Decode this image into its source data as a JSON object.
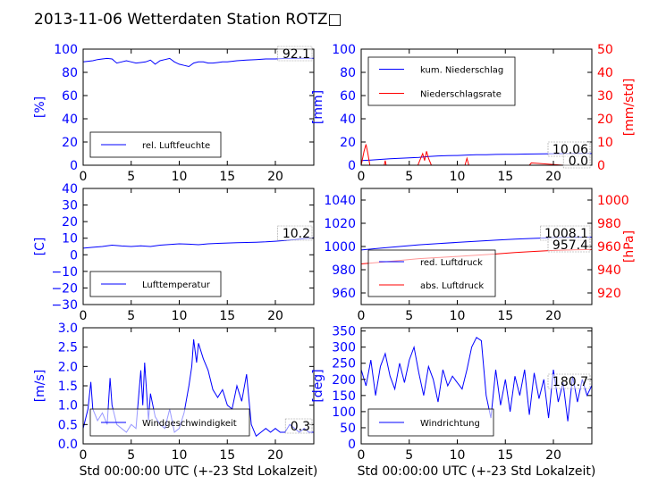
{
  "page_title": "2013-11-06 Wetterdaten Station ROTZ□",
  "xlabel": "Std 00:00:00 UTC (+-23 Std Lokalzeit)",
  "xticks": [
    "0",
    "5",
    "10",
    "15",
    "20"
  ],
  "colors": {
    "primary": "#0000ff",
    "secondary": "#ff0000",
    "axis": "#000000"
  },
  "chart_data": [
    {
      "id": "humidity",
      "type": "line",
      "ylabel": "[%]",
      "ylim": [
        0,
        100
      ],
      "yticks": [
        "0",
        "20",
        "40",
        "60",
        "80",
        "100"
      ],
      "xlim": [
        0,
        24
      ],
      "legend_position": "lower-left",
      "value_box": "92.1",
      "series": [
        {
          "name": "rel. Luftfeuchte",
          "color": "#0000ff",
          "x": [
            0,
            0.5,
            1,
            1.5,
            2,
            2.5,
            3,
            3.5,
            4,
            4.5,
            5,
            5.5,
            6,
            6.5,
            7,
            7.5,
            8,
            8.5,
            9,
            9.5,
            10,
            10.5,
            11,
            11.5,
            12,
            12.5,
            13,
            13.5,
            14,
            14.5,
            15,
            16,
            17,
            18,
            19,
            20,
            21,
            22,
            23,
            24
          ],
          "y": [
            89,
            89.5,
            90,
            91,
            91.5,
            92,
            91.5,
            88,
            89,
            90,
            89,
            88,
            88.5,
            89,
            90.5,
            87,
            90,
            91,
            92,
            89,
            87,
            86,
            85,
            88,
            89,
            89,
            88,
            88,
            88.5,
            89,
            89,
            90,
            90.5,
            91,
            91.5,
            91.5,
            92,
            92,
            92.1,
            92.1
          ]
        }
      ]
    },
    {
      "id": "precipitation",
      "type": "line",
      "ylabel": "[mm]",
      "ylim": [
        0,
        100
      ],
      "yticks": [
        "0",
        "20",
        "40",
        "60",
        "80",
        "100"
      ],
      "y2label": "[mm/std]",
      "y2lim": [
        0,
        50
      ],
      "y2ticks": [
        "0",
        "10",
        "20",
        "30",
        "40",
        "50"
      ],
      "xlim": [
        0,
        24
      ],
      "legend_position": "upper-left",
      "value_boxes": [
        "10.06",
        "0.0"
      ],
      "series": [
        {
          "name": "kum. Niederschlag",
          "color": "#0000ff",
          "axis": "left",
          "x": [
            0,
            1,
            2,
            3,
            4,
            5,
            6,
            7,
            8,
            9,
            10,
            11,
            12,
            13,
            14,
            15,
            16,
            17,
            18,
            19,
            20,
            21,
            22,
            23,
            24
          ],
          "y": [
            4,
            4.5,
            5,
            5.5,
            6,
            6.3,
            6.8,
            7.5,
            8,
            8.2,
            8.4,
            8.8,
            9,
            9.1,
            9.3,
            9.4,
            9.5,
            9.6,
            9.7,
            9.8,
            9.9,
            10,
            10.03,
            10.05,
            10.06
          ]
        },
        {
          "name": "Niederschlagsrate",
          "color": "#ff0000",
          "axis": "right",
          "x": [
            0,
            0.3,
            0.5,
            0.7,
            0.9,
            1.2,
            2.4,
            2.5,
            2.6,
            5.9,
            6.2,
            6.4,
            6.6,
            6.8,
            7.0,
            7.3,
            10.8,
            11.0,
            11.2,
            17.5,
            17.7,
            21,
            24
          ],
          "y": [
            0,
            6,
            9,
            5,
            0,
            0,
            0,
            2,
            0,
            0,
            3,
            5,
            2,
            6,
            3,
            0,
            0,
            3,
            0,
            0,
            1,
            0,
            0
          ]
        }
      ]
    },
    {
      "id": "temperature",
      "type": "line",
      "ylabel": "[C]",
      "ylim": [
        -30,
        40
      ],
      "yticks": [
        "−30",
        "−20",
        "−10",
        "0",
        "10",
        "20",
        "30",
        "40"
      ],
      "xlim": [
        0,
        24
      ],
      "legend_position": "lower-left",
      "value_box": "10.2",
      "series": [
        {
          "name": "Lufttemperatur",
          "color": "#0000ff",
          "x": [
            0,
            1,
            2,
            3,
            4,
            5,
            6,
            7,
            8,
            9,
            10,
            11,
            12,
            13,
            14,
            15,
            16,
            17,
            18,
            19,
            20,
            21,
            22,
            23,
            24
          ],
          "y": [
            4,
            4.5,
            5,
            5.8,
            5.3,
            5,
            5.4,
            5,
            5.8,
            6.2,
            6.6,
            6.4,
            6.1,
            6.6,
            6.9,
            7.1,
            7.3,
            7.4,
            7.6,
            7.8,
            8.2,
            8.6,
            9.2,
            9.8,
            10.2
          ]
        }
      ]
    },
    {
      "id": "pressure",
      "type": "line",
      "ylim": [
        950,
        1050
      ],
      "yticks": [
        "960",
        "980",
        "1000",
        "1020",
        "1040"
      ],
      "y2label": "[hPa]",
      "y2lim": [
        910,
        1010
      ],
      "y2ticks": [
        "920",
        "940",
        "960",
        "980",
        "1000"
      ],
      "xlim": [
        0,
        24
      ],
      "legend_position": "lower-left",
      "value_boxes": [
        "1008.1",
        "957.4"
      ],
      "series": [
        {
          "name": "red. Luftdruck",
          "color": "#0000ff",
          "axis": "left",
          "x": [
            0,
            2,
            4,
            6,
            8,
            10,
            12,
            14,
            16,
            18,
            20,
            22,
            24
          ],
          "y": [
            997,
            998.5,
            1000,
            1001.5,
            1002.5,
            1003.5,
            1004.5,
            1005.5,
            1006.3,
            1007,
            1007.6,
            1008,
            1008.1
          ]
        },
        {
          "name": "abs. Luftdruck",
          "color": "#ff0000",
          "axis": "right",
          "x": [
            0,
            2,
            4,
            6,
            8,
            10,
            12,
            14,
            16,
            18,
            20,
            22,
            24
          ],
          "y": [
            945,
            946.5,
            948,
            949.5,
            950.5,
            951.5,
            952.5,
            953.5,
            954.8,
            955.8,
            956.6,
            957.1,
            957.4
          ]
        }
      ]
    },
    {
      "id": "wind-speed",
      "type": "line",
      "ylabel": "[m/s]",
      "ylim": [
        0,
        3
      ],
      "yticks": [
        "0.0",
        "0.5",
        "1.0",
        "1.5",
        "2.0",
        "2.5",
        "3.0"
      ],
      "xlim": [
        0,
        24
      ],
      "legend_position": "lower-left",
      "value_box": "0.3",
      "series": [
        {
          "name": "Windgeschwindigkeit",
          "color": "#0000ff",
          "x": [
            0,
            0.5,
            0.8,
            1,
            1.5,
            2,
            2.5,
            2.8,
            3,
            3.5,
            4,
            4.5,
            5,
            5.5,
            6,
            6.2,
            6.4,
            6.8,
            7,
            7.5,
            8,
            8.5,
            9,
            9.5,
            10,
            10.5,
            11,
            11.3,
            11.5,
            11.8,
            12,
            12.5,
            13,
            13.5,
            14,
            14.5,
            15,
            15.5,
            16,
            16.5,
            17,
            17.5,
            18,
            18.5,
            19,
            19.5,
            20,
            20.5,
            21,
            21.5,
            22,
            22.5,
            23,
            23.5,
            24
          ],
          "y": [
            0.4,
            0.9,
            1.6,
            0.9,
            0.6,
            0.8,
            0.5,
            1.7,
            1.0,
            0.5,
            0.4,
            0.3,
            0.5,
            0.4,
            1.9,
            1.0,
            2.1,
            0.6,
            1.3,
            0.7,
            0.5,
            0.4,
            0.9,
            0.3,
            0.4,
            0.8,
            1.5,
            2.0,
            2.7,
            2.1,
            2.6,
            2.2,
            1.9,
            1.4,
            1.2,
            1.4,
            1.0,
            0.9,
            1.5,
            1.1,
            1.8,
            0.5,
            0.2,
            0.3,
            0.4,
            0.3,
            0.4,
            0.3,
            0.3,
            0.5,
            0.4,
            0.3,
            0.4,
            0.3,
            0.3
          ]
        }
      ]
    },
    {
      "id": "wind-direction",
      "type": "line",
      "ylabel": "[deg]",
      "ylim": [
        0,
        360
      ],
      "yticks": [
        "0",
        "50",
        "100",
        "150",
        "200",
        "250",
        "300",
        "350"
      ],
      "xlim": [
        0,
        24
      ],
      "legend_position": "lower-left",
      "value_box": "180.7",
      "series": [
        {
          "name": "Windrichtung",
          "color": "#0000ff",
          "x": [
            0,
            0.5,
            1,
            1.5,
            2,
            2.5,
            3,
            3.5,
            4,
            4.5,
            5,
            5.5,
            6,
            6.5,
            7,
            7.5,
            8,
            8.5,
            9,
            9.5,
            10,
            10.5,
            11,
            11.5,
            12,
            12.5,
            13,
            13.5,
            14,
            14.5,
            15,
            15.5,
            16,
            16.5,
            17,
            17.5,
            18,
            18.5,
            19,
            19.5,
            20,
            20.5,
            21,
            21.5,
            22,
            22.5,
            23,
            23.5,
            24
          ],
          "y": [
            230,
            180,
            260,
            150,
            240,
            280,
            210,
            170,
            250,
            190,
            260,
            300,
            220,
            150,
            240,
            200,
            130,
            230,
            180,
            210,
            190,
            170,
            230,
            300,
            330,
            320,
            150,
            80,
            230,
            120,
            200,
            100,
            210,
            150,
            230,
            90,
            220,
            140,
            200,
            80,
            230,
            130,
            190,
            70,
            210,
            130,
            200,
            150,
            181
          ]
        }
      ]
    }
  ]
}
